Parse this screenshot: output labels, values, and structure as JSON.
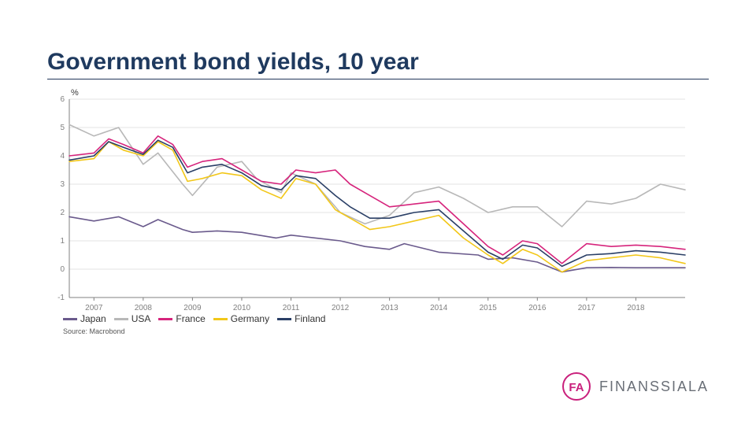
{
  "title": "Government bond yields, 10 year",
  "ylabel": "%",
  "source": "Source: Macrobond",
  "logo": {
    "text": "FINANSSIALA",
    "brand_color": "#c9207c",
    "text_color": "#6a6f77"
  },
  "chart": {
    "type": "line",
    "background_color": "#ffffff",
    "grid_color": "#e3e3e3",
    "axis_color": "#808080",
    "tick_font_size": 10,
    "tick_color": "#808080",
    "line_width": 1.6,
    "ylim": [
      -1,
      6
    ],
    "ytick_step": 1,
    "xlim": [
      2006.5,
      2019
    ],
    "xticks": [
      2007,
      2008,
      2009,
      2010,
      2011,
      2012,
      2013,
      2014,
      2015,
      2016,
      2017,
      2018
    ],
    "series": [
      {
        "name": "Japan",
        "color": "#6a5a8c",
        "x": [
          2006.5,
          2007,
          2007.5,
          2008,
          2008.3,
          2008.8,
          2009,
          2009.5,
          2010,
          2010.7,
          2011,
          2011.5,
          2012,
          2012.5,
          2013,
          2013.3,
          2014,
          2014.8,
          2015,
          2015.5,
          2016,
          2016.5,
          2017,
          2017.5,
          2018,
          2018.5,
          2019
        ],
        "y": [
          1.85,
          1.7,
          1.85,
          1.5,
          1.75,
          1.4,
          1.3,
          1.35,
          1.3,
          1.1,
          1.2,
          1.1,
          1.0,
          0.8,
          0.7,
          0.9,
          0.6,
          0.5,
          0.35,
          0.4,
          0.25,
          -0.1,
          0.05,
          0.06,
          0.05,
          0.05,
          0.05
        ]
      },
      {
        "name": "USA",
        "color": "#b8b8b8",
        "x": [
          2006.5,
          2007,
          2007.5,
          2008,
          2008.3,
          2008.8,
          2009,
          2009.5,
          2010,
          2010.3,
          2010.8,
          2011,
          2011.5,
          2012,
          2012.5,
          2013,
          2013.5,
          2014,
          2014.5,
          2015,
          2015.5,
          2016,
          2016.5,
          2017,
          2017.5,
          2018,
          2018.5,
          2019
        ],
        "y": [
          5.1,
          4.7,
          5.0,
          3.7,
          4.1,
          3.0,
          2.6,
          3.6,
          3.8,
          3.2,
          2.7,
          3.4,
          3.0,
          2.0,
          1.6,
          1.9,
          2.7,
          2.9,
          2.5,
          2.0,
          2.2,
          2.2,
          1.5,
          2.4,
          2.3,
          2.5,
          3.0,
          2.8
        ]
      },
      {
        "name": "France",
        "color": "#d6247c",
        "x": [
          2006.5,
          2007,
          2007.3,
          2007.6,
          2008,
          2008.3,
          2008.6,
          2008.9,
          2009.2,
          2009.6,
          2010,
          2010.4,
          2010.8,
          2011.1,
          2011.5,
          2011.9,
          2012.2,
          2012.6,
          2013,
          2013.5,
          2014,
          2014.5,
          2015,
          2015.3,
          2015.7,
          2016,
          2016.5,
          2017,
          2017.5,
          2018,
          2018.5,
          2019
        ],
        "y": [
          4.0,
          4.1,
          4.6,
          4.4,
          4.1,
          4.7,
          4.4,
          3.6,
          3.8,
          3.9,
          3.5,
          3.1,
          3.0,
          3.5,
          3.4,
          3.5,
          3.0,
          2.6,
          2.2,
          2.3,
          2.4,
          1.6,
          0.8,
          0.5,
          1.0,
          0.9,
          0.2,
          0.9,
          0.8,
          0.85,
          0.8,
          0.7
        ]
      },
      {
        "name": "Germany",
        "color": "#f2c719",
        "x": [
          2006.5,
          2007,
          2007.3,
          2007.6,
          2008,
          2008.3,
          2008.6,
          2008.9,
          2009.2,
          2009.6,
          2010,
          2010.4,
          2010.8,
          2011.1,
          2011.5,
          2011.9,
          2012.2,
          2012.6,
          2013,
          2013.5,
          2014,
          2014.5,
          2015,
          2015.3,
          2015.7,
          2016,
          2016.5,
          2017,
          2017.5,
          2018,
          2018.5,
          2019
        ],
        "y": [
          3.8,
          3.9,
          4.5,
          4.2,
          4.0,
          4.5,
          4.2,
          3.1,
          3.2,
          3.4,
          3.3,
          2.8,
          2.5,
          3.2,
          3.0,
          2.1,
          1.8,
          1.4,
          1.5,
          1.7,
          1.9,
          1.1,
          0.5,
          0.2,
          0.7,
          0.5,
          -0.1,
          0.3,
          0.4,
          0.5,
          0.4,
          0.2
        ]
      },
      {
        "name": "Finland",
        "color": "#2a3f66",
        "x": [
          2006.5,
          2007,
          2007.3,
          2007.6,
          2008,
          2008.3,
          2008.6,
          2008.9,
          2009.2,
          2009.6,
          2010,
          2010.4,
          2010.8,
          2011.1,
          2011.5,
          2011.9,
          2012.2,
          2012.6,
          2013,
          2013.5,
          2014,
          2014.5,
          2015,
          2015.3,
          2015.7,
          2016,
          2016.5,
          2017,
          2017.5,
          2018,
          2018.5,
          2019
        ],
        "y": [
          3.85,
          4.0,
          4.5,
          4.3,
          4.05,
          4.55,
          4.3,
          3.4,
          3.6,
          3.7,
          3.4,
          2.95,
          2.8,
          3.3,
          3.2,
          2.6,
          2.2,
          1.8,
          1.8,
          2.0,
          2.1,
          1.35,
          0.6,
          0.35,
          0.85,
          0.75,
          0.1,
          0.5,
          0.55,
          0.65,
          0.6,
          0.5
        ]
      }
    ],
    "legend_order": [
      "Japan",
      "USA",
      "France",
      "Germany",
      "Finland"
    ]
  }
}
